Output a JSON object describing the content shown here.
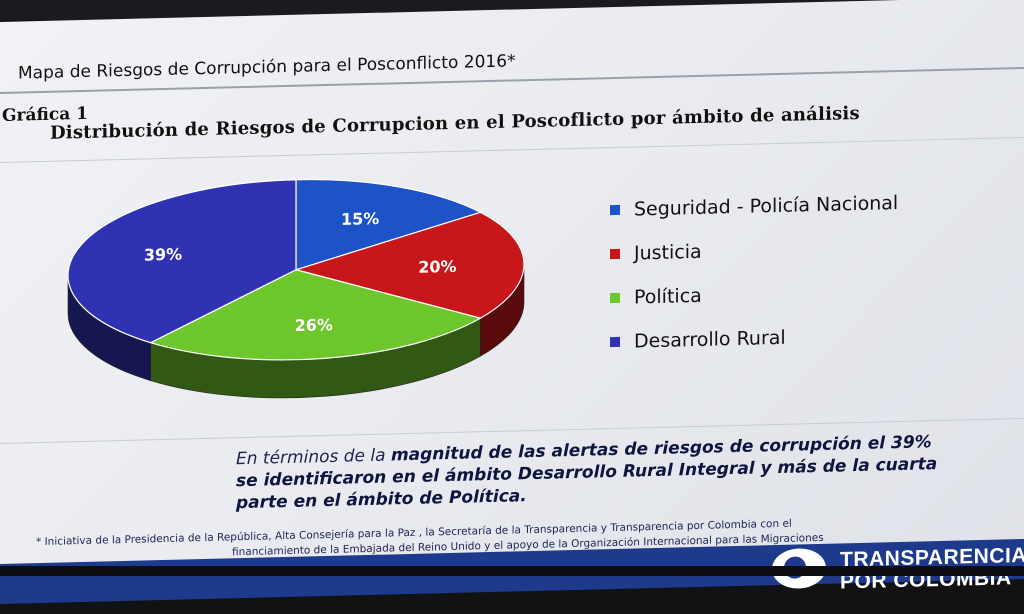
{
  "slide": {
    "title": "Mapa de Riesgos de Corrupción para el Posconflicto  2016*"
  },
  "chart_data": {
    "type": "pie",
    "label": "Gráfica 1",
    "title": "Distribución de Riesgos de Corrupcion en el Poscoflicto por ámbito de análisis",
    "slices": [
      {
        "name": "Seguridad -  Policía Nacional",
        "value": 15,
        "label": "15%",
        "color": "#1d53c6"
      },
      {
        "name": "Justicia",
        "value": 20,
        "label": "20%",
        "color": "#c8171b"
      },
      {
        "name": "Política",
        "value": 26,
        "label": "26%",
        "color": "#6cc62c"
      },
      {
        "name": "Desarrollo Rural",
        "value": 39,
        "label": "39%",
        "color": "#3032b4"
      }
    ],
    "style": "3d",
    "legend_position": "right"
  },
  "summary": {
    "part1": "En términos de la ",
    "part2": "magnitud de las alertas de riesgos de corrupción el 39% se identificaron en el ámbito Desarrollo Rural Integral y más de la cuarta parte en el ámbito de Política."
  },
  "footnote": {
    "line1": "* Iniciativa de la Presidencia de la República, Alta Consejería para la Paz , la Secretaría de la Transparencia y Transparencia por Colombia con el",
    "line2": "financiamiento de la Embajada del Reino Unido y el apoyo de la Organización Internacional para las Migraciones"
  },
  "footer": {
    "brand_line1": "TRANSPARENCIA",
    "brand_line2": "POR COLOMBIA"
  }
}
